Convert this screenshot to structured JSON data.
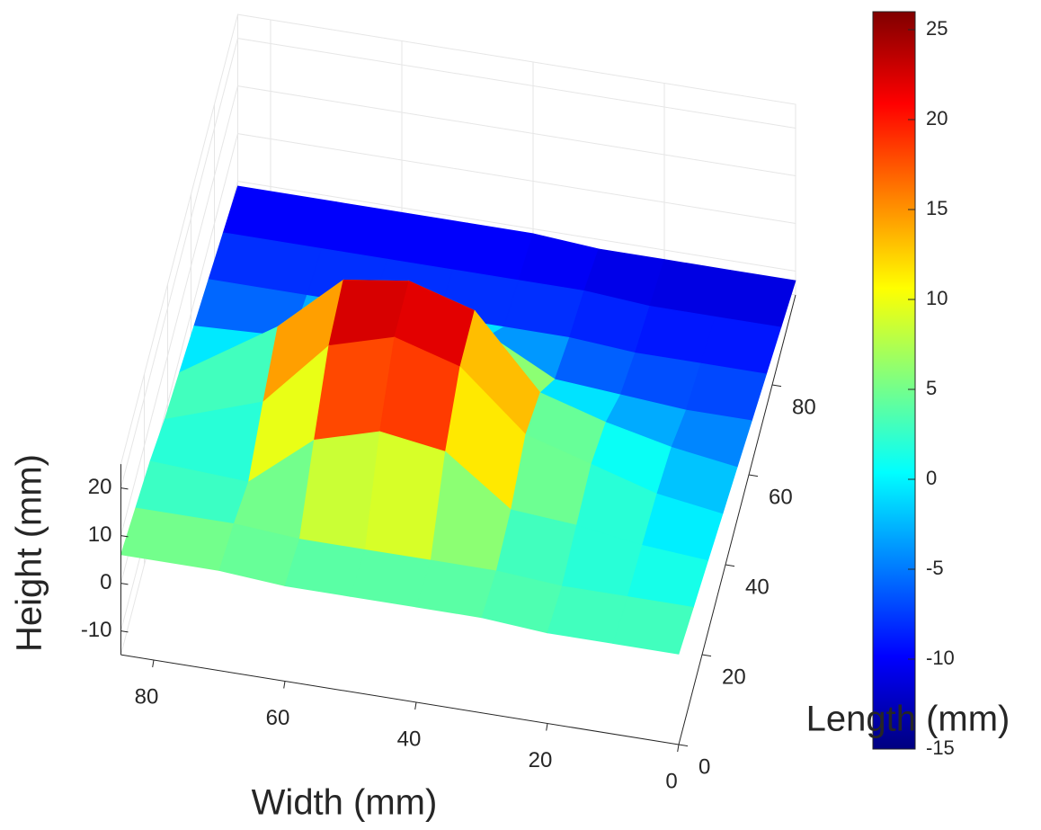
{
  "chart_data": {
    "type": "surface",
    "x_label": "Width (mm)",
    "y_label": "Length (mm)",
    "z_label": "Height (mm)",
    "x": [
      0,
      10,
      20,
      30,
      40,
      50,
      60,
      70,
      85
    ],
    "y": [
      0,
      12.5,
      25,
      37.5,
      50,
      62.5,
      75,
      87.5,
      100
    ],
    "z": [
      [
        4,
        4,
        4,
        5,
        5,
        5,
        5,
        6,
        6
      ],
      [
        2,
        2,
        2,
        3,
        3,
        3,
        3,
        4,
        4
      ],
      [
        0,
        1,
        3,
        4,
        14,
        16,
        12,
        1,
        2
      ],
      [
        -2,
        0,
        4,
        8,
        20,
        24,
        20,
        6,
        -1
      ],
      [
        -4,
        -2,
        1,
        5,
        20,
        24,
        22,
        10,
        -3
      ],
      [
        -6,
        -6,
        -5,
        -4,
        3,
        8,
        6,
        -4,
        -5
      ],
      [
        -8,
        -8,
        -8,
        -7,
        -7,
        -7,
        -7,
        -7,
        -7
      ],
      [
        -10,
        -10,
        -10,
        -9,
        -9,
        -9,
        -9,
        -9,
        -9
      ],
      [
        -12,
        -12,
        -12,
        -12,
        -11,
        -11,
        -11,
        -11,
        -11
      ]
    ],
    "xlim": [
      0,
      85
    ],
    "ylim": [
      0,
      100
    ],
    "zlim": [
      -15,
      25
    ],
    "xticks": [
      0,
      20,
      40,
      60,
      80
    ],
    "yticks": [
      0,
      20,
      40,
      60,
      80
    ],
    "zticks": [
      -10,
      0,
      10,
      20
    ],
    "colormap": "jet",
    "clim": [
      -15,
      26
    ],
    "colorbar_ticks": [
      -15,
      -10,
      -5,
      0,
      5,
      10,
      15,
      20,
      25
    ],
    "grid": true
  }
}
